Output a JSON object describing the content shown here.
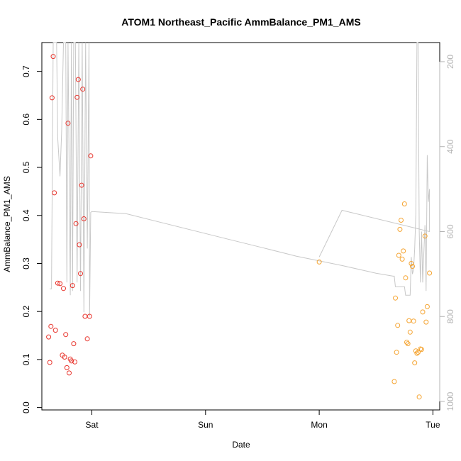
{
  "chart_data": {
    "type": "scatter",
    "title": "ATOM1 Northeast_Pacific AmmBalance_PM1_AMS",
    "xlabel": "Date",
    "ylabel": "AmmBalance_PM1_AMS",
    "x_ticks": [
      {
        "value": 0.9,
        "label": "Sat"
      },
      {
        "value": 1.9,
        "label": "Sun"
      },
      {
        "value": 2.9,
        "label": "Mon"
      },
      {
        "value": 3.9,
        "label": "Tue"
      }
    ],
    "xlim": [
      0.46,
      3.96
    ],
    "ylim": [
      -0.005,
      0.76
    ],
    "y_ticks": [
      0.0,
      0.1,
      0.2,
      0.3,
      0.4,
      0.5,
      0.6,
      0.7
    ],
    "y2_ticks": [
      200,
      400,
      600,
      800,
      1000
    ],
    "y2lim": [
      1020,
      155
    ],
    "grid": false,
    "colors": {
      "series1": "#e8342c",
      "series2": "#f5a431",
      "line": "#c8c8c8",
      "axis": "#000000",
      "axis2": "#b4b4b4"
    },
    "series": [
      {
        "points": [
          [
            0.52,
            0.147
          ],
          [
            0.53,
            0.094
          ],
          [
            0.54,
            0.169
          ],
          [
            0.55,
            0.645
          ],
          [
            0.56,
            0.731
          ],
          [
            0.57,
            0.447
          ],
          [
            0.58,
            0.161
          ],
          [
            0.6,
            0.259
          ],
          [
            0.62,
            0.258
          ],
          [
            0.64,
            0.109
          ],
          [
            0.65,
            0.248
          ],
          [
            0.66,
            0.105
          ],
          [
            0.67,
            0.152
          ],
          [
            0.68,
            0.083
          ],
          [
            0.69,
            0.592
          ],
          [
            0.7,
            0.072
          ],
          [
            0.71,
            0.101
          ],
          [
            0.72,
            0.097
          ],
          [
            0.73,
            0.254
          ],
          [
            0.74,
            0.133
          ],
          [
            0.75,
            0.095
          ],
          [
            0.76,
            0.383
          ],
          [
            0.77,
            0.646
          ],
          [
            0.78,
            0.683
          ],
          [
            0.79,
            0.339
          ],
          [
            0.8,
            0.279
          ],
          [
            0.81,
            0.463
          ],
          [
            0.82,
            0.663
          ],
          [
            0.83,
            0.393
          ],
          [
            0.84,
            0.19
          ],
          [
            0.86,
            0.143
          ],
          [
            0.88,
            0.19
          ],
          [
            0.89,
            0.524
          ]
        ]
      },
      {
        "points": [
          [
            2.9,
            0.303
          ],
          [
            3.56,
            0.054
          ],
          [
            3.57,
            0.228
          ],
          [
            3.58,
            0.115
          ],
          [
            3.59,
            0.171
          ],
          [
            3.6,
            0.317
          ],
          [
            3.61,
            0.371
          ],
          [
            3.62,
            0.39
          ],
          [
            3.63,
            0.309
          ],
          [
            3.64,
            0.326
          ],
          [
            3.65,
            0.424
          ],
          [
            3.66,
            0.27
          ],
          [
            3.67,
            0.136
          ],
          [
            3.68,
            0.133
          ],
          [
            3.69,
            0.181
          ],
          [
            3.7,
            0.157
          ],
          [
            3.71,
            0.3
          ],
          [
            3.72,
            0.294
          ],
          [
            3.73,
            0.18
          ],
          [
            3.74,
            0.093
          ],
          [
            3.75,
            0.118
          ],
          [
            3.76,
            0.113
          ],
          [
            3.77,
            0.115
          ],
          [
            3.78,
            0.022
          ],
          [
            3.79,
            0.122
          ],
          [
            3.8,
            0.121
          ],
          [
            3.81,
            0.199
          ],
          [
            3.83,
            0.357
          ],
          [
            3.84,
            0.178
          ],
          [
            3.85,
            0.21
          ],
          [
            3.87,
            0.28
          ]
        ]
      }
    ],
    "line_y2": [
      [
        0.53,
        735
      ],
      [
        0.545,
        735
      ],
      [
        0.56,
        155
      ],
      [
        0.575,
        155
      ],
      [
        0.59,
        155
      ],
      [
        0.6,
        380
      ],
      [
        0.62,
        470
      ],
      [
        0.635,
        360
      ],
      [
        0.65,
        155
      ],
      [
        0.66,
        155
      ],
      [
        0.67,
        155
      ],
      [
        0.68,
        720
      ],
      [
        0.69,
        155
      ],
      [
        0.71,
        750
      ],
      [
        0.72,
        155
      ],
      [
        0.73,
        740
      ],
      [
        0.74,
        155
      ],
      [
        0.755,
        155
      ],
      [
        0.77,
        720
      ],
      [
        0.785,
        155
      ],
      [
        0.8,
        740
      ],
      [
        0.815,
        155
      ],
      [
        0.83,
        790
      ],
      [
        0.845,
        155
      ],
      [
        0.86,
        640
      ],
      [
        0.875,
        155
      ],
      [
        0.88,
        800
      ],
      [
        0.89,
        555
      ],
      [
        0.9,
        553
      ],
      [
        1.2,
        558
      ],
      [
        1.5,
        578
      ],
      [
        1.8,
        598
      ],
      [
        2.1,
        618
      ],
      [
        2.4,
        638
      ],
      [
        2.7,
        658
      ],
      [
        3.1,
        680
      ],
      [
        3.4,
        698
      ],
      [
        3.55,
        705
      ],
      [
        3.56,
        705
      ],
      [
        3.57,
        730
      ],
      [
        3.65,
        730
      ],
      [
        3.66,
        750
      ],
      [
        3.69,
        750
      ],
      [
        3.7,
        750
      ],
      [
        3.71,
        660
      ],
      [
        3.72,
        700
      ],
      [
        3.73,
        690
      ],
      [
        3.74,
        640
      ],
      [
        3.75,
        560
      ],
      [
        3.76,
        155
      ],
      [
        3.77,
        155
      ],
      [
        3.78,
        600
      ],
      [
        3.79,
        720
      ],
      [
        3.8,
        600
      ],
      [
        3.81,
        720
      ],
      [
        3.82,
        650
      ],
      [
        3.83,
        585
      ],
      [
        3.84,
        740
      ],
      [
        3.85,
        420
      ],
      [
        3.86,
        530
      ],
      [
        3.87,
        500
      ],
      [
        3.87,
        600
      ],
      [
        3.1,
        550
      ],
      [
        2.9,
        660
      ]
    ]
  }
}
